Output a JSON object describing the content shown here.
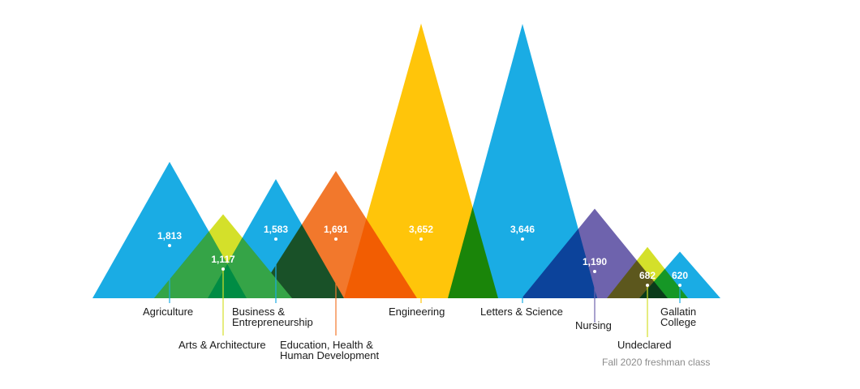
{
  "chart_data": {
    "type": "area",
    "categories": [
      "Agriculture",
      "Arts & Architecture",
      "Business & Entrepreneurship",
      "Education, Health & Human Development",
      "Engineering",
      "Letters & Science",
      "Nursing",
      "Undeclared",
      "Gallatin College"
    ],
    "series": [
      {
        "values": [
          1813,
          1117,
          1583,
          1691,
          3652,
          3646,
          1190,
          682,
          620
        ],
        "value_labels": [
          "1,813",
          "1,117",
          "1,583",
          "1,691",
          "3,652",
          "3,646",
          "1,190",
          "682",
          "620"
        ]
      }
    ],
    "label_lines": [
      [
        "Agriculture"
      ],
      [
        "Arts & Architecture"
      ],
      [
        "Business &",
        "Entrepreneurship"
      ],
      [
        "Education, Health &",
        "Human Development"
      ],
      [
        "Engineering"
      ],
      [
        "Letters & Science"
      ],
      [
        "Nursing"
      ],
      [
        "Undeclared"
      ],
      [
        "Gallatin",
        "College"
      ]
    ],
    "colors": [
      "#1aace4",
      "#d4e02a",
      "#1aace4",
      "#f2782c",
      "#ffc50a",
      "#1aace4",
      "#6e63ad",
      "#d4e02a",
      "#1aace4"
    ],
    "line_colors": [
      "#1aace4",
      "#d4e02a",
      "#1aace4",
      "#f2782c",
      "#ffc50a",
      "#1aace4",
      "#6e63ad",
      "#d4e02a",
      "#1aace4"
    ],
    "overlap_colors": [
      "#35a447",
      "#008c44",
      "#3f5541"
    ],
    "note": "Fall 2020 freshman class",
    "legend": "none",
    "grid": false
  }
}
